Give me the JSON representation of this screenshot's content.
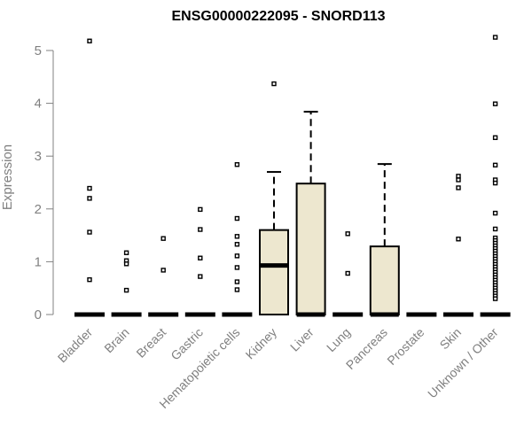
{
  "chart_data": {
    "type": "box",
    "title": "ENSG00000222095 - SNORD113",
    "xlabel": "",
    "ylabel": "Expression",
    "ylim": [
      0,
      5.25
    ],
    "yticks": [
      0,
      1,
      2,
      3,
      4,
      5
    ],
    "colors": {
      "box_fill": "#ede7cf",
      "outline": "#000000",
      "axis_text": "#808080"
    },
    "categories": [
      "Bladder",
      "Brain",
      "Breast",
      "Gastric",
      "Hematopoietic cells",
      "Kidney",
      "Liver",
      "Lung",
      "Pancreas",
      "Prostate",
      "Skin",
      "Unknown / Other"
    ],
    "boxes": [
      {
        "category": "Bladder",
        "q1": 0,
        "median": 0,
        "q3": 0,
        "whisker_low": 0,
        "whisker_high": 0,
        "outliers": [
          5.18,
          2.39,
          2.2,
          1.56,
          0.66
        ]
      },
      {
        "category": "Brain",
        "q1": 0,
        "median": 0,
        "q3": 0,
        "whisker_low": 0,
        "whisker_high": 0,
        "outliers": [
          1.17,
          1.02,
          0.96,
          0.46
        ]
      },
      {
        "category": "Breast",
        "q1": 0,
        "median": 0,
        "q3": 0,
        "whisker_low": 0,
        "whisker_high": 0,
        "outliers": [
          1.44,
          0.84
        ]
      },
      {
        "category": "Gastric",
        "q1": 0,
        "median": 0,
        "q3": 0,
        "whisker_low": 0,
        "whisker_high": 0,
        "outliers": [
          1.99,
          1.61,
          1.07,
          0.72
        ]
      },
      {
        "category": "Hematopoietic cells",
        "q1": 0,
        "median": 0,
        "q3": 0,
        "whisker_low": 0,
        "whisker_high": 0,
        "outliers": [
          2.84,
          1.82,
          1.48,
          1.33,
          1.11,
          0.89,
          0.62,
          0.47
        ]
      },
      {
        "category": "Kidney",
        "q1": 0,
        "median": 0.93,
        "q3": 1.6,
        "whisker_low": 0,
        "whisker_high": 2.7,
        "outliers": [
          4.37
        ]
      },
      {
        "category": "Liver",
        "q1": 0,
        "median": 0,
        "q3": 2.48,
        "whisker_low": 0,
        "whisker_high": 3.84,
        "outliers": []
      },
      {
        "category": "Lung",
        "q1": 0,
        "median": 0,
        "q3": 0,
        "whisker_low": 0,
        "whisker_high": 0,
        "outliers": [
          1.53,
          0.78
        ]
      },
      {
        "category": "Pancreas",
        "q1": 0,
        "median": 0,
        "q3": 1.29,
        "whisker_low": 0,
        "whisker_high": 2.85,
        "outliers": []
      },
      {
        "category": "Prostate",
        "q1": 0,
        "median": 0,
        "q3": 0,
        "whisker_low": 0,
        "whisker_high": 0,
        "outliers": []
      },
      {
        "category": "Skin",
        "q1": 0,
        "median": 0,
        "q3": 0,
        "whisker_low": 0,
        "whisker_high": 0,
        "outliers": [
          2.62,
          2.55,
          2.4,
          1.43
        ]
      },
      {
        "category": "Unknown / Other",
        "q1": 0,
        "median": 0,
        "q3": 0,
        "whisker_low": 0,
        "whisker_high": 0,
        "outliers": [
          5.25,
          3.99,
          3.35,
          2.83,
          2.55,
          2.49,
          1.92,
          1.62,
          1.45,
          1.4,
          1.35,
          1.3,
          1.25,
          1.2,
          1.15,
          1.1,
          1.05,
          1.0,
          0.95,
          0.9,
          0.85,
          0.8,
          0.75,
          0.7,
          0.65,
          0.6,
          0.55,
          0.5,
          0.45,
          0.4,
          0.35,
          0.3
        ]
      }
    ]
  }
}
